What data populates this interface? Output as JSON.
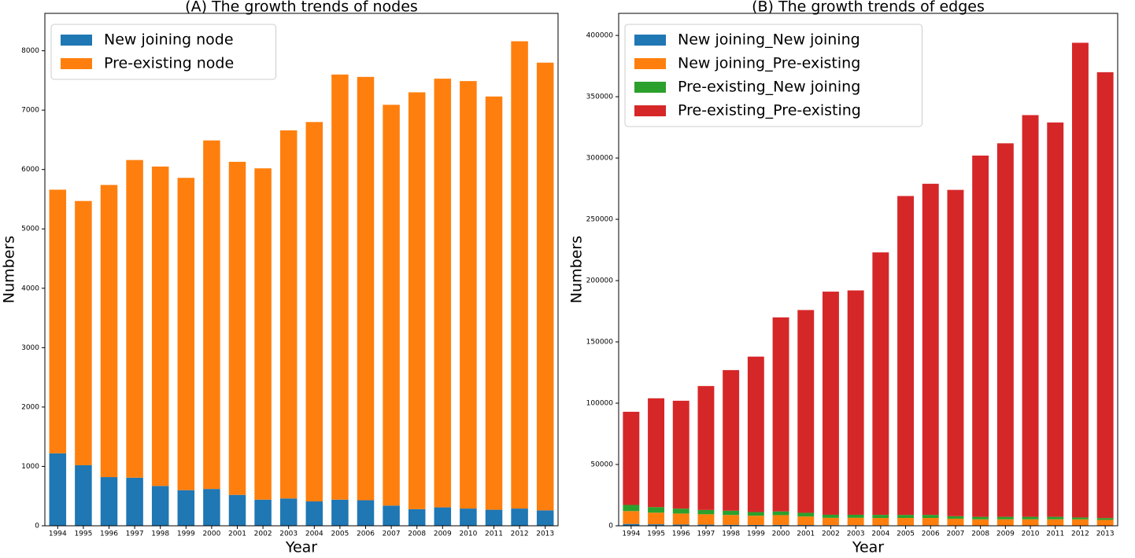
{
  "chart_data": [
    {
      "type": "stacked-bar",
      "title": "(A) The growth trends of nodes",
      "x_label": "Year",
      "y_label": "Numbers",
      "categories": [
        "1994",
        "1995",
        "1996",
        "1997",
        "1998",
        "1999",
        "2000",
        "2001",
        "2002",
        "2003",
        "2004",
        "2005",
        "2006",
        "2007",
        "2008",
        "2009",
        "2010",
        "2011",
        "2012",
        "2013"
      ],
      "series": [
        {
          "name": "New joining node",
          "color": "#1f77b4",
          "values": [
            1220,
            1020,
            820,
            810,
            670,
            600,
            620,
            520,
            440,
            460,
            410,
            440,
            430,
            340,
            280,
            310,
            290,
            270,
            290,
            260
          ]
        },
        {
          "name": "Pre-existing node",
          "color": "#ff7f0e",
          "values": [
            4440,
            4450,
            4920,
            5350,
            5380,
            5260,
            5870,
            5610,
            5580,
            6200,
            6390,
            7160,
            7130,
            6750,
            7020,
            7220,
            7200,
            6960,
            7870,
            7540
          ]
        }
      ],
      "ylim": [
        0,
        8630
      ],
      "yticks": [
        0,
        1000,
        2000,
        3000,
        4000,
        5000,
        6000,
        7000,
        8000
      ],
      "legend": "upper left"
    },
    {
      "type": "stacked-bar",
      "title": "(B) The growth trends of edges",
      "x_label": "Year",
      "y_label": "Numbers",
      "categories": [
        "1994",
        "1995",
        "1996",
        "1997",
        "1998",
        "1999",
        "2000",
        "2001",
        "2002",
        "2003",
        "2004",
        "2005",
        "2006",
        "2007",
        "2008",
        "2009",
        "2010",
        "2011",
        "2012",
        "2013"
      ],
      "series": [
        {
          "name": "New joining_New joining",
          "color": "#1f77b4",
          "values": [
            1500,
            1200,
            1000,
            900,
            800,
            700,
            700,
            600,
            500,
            500,
            400,
            400,
            400,
            300,
            300,
            300,
            300,
            300,
            300,
            300
          ]
        },
        {
          "name": "New joining_Pre-existing",
          "color": "#ff7f0e",
          "values": [
            10500,
            9500,
            9000,
            8500,
            8000,
            7500,
            8000,
            7000,
            6000,
            6000,
            6000,
            6000,
            6000,
            5500,
            5000,
            5000,
            5000,
            5000,
            5000,
            4500
          ]
        },
        {
          "name": "Pre-existing_New joining",
          "color": "#2ca02c",
          "values": [
            5000,
            4500,
            4000,
            3500,
            3500,
            3000,
            3000,
            3000,
            2500,
            2500,
            2500,
            2500,
            2500,
            2000,
            2000,
            2000,
            2000,
            2000,
            1500,
            1500
          ]
        },
        {
          "name": "Pre-existing_Pre-existing",
          "color": "#d62728",
          "values": [
            76000,
            88800,
            88000,
            101100,
            114700,
            126800,
            158300,
            165400,
            182000,
            183000,
            214100,
            260100,
            270100,
            266200,
            294700,
            304700,
            327700,
            321700,
            387200,
            363700
          ]
        }
      ],
      "ylim": [
        0,
        418000
      ],
      "yticks": [
        0,
        50000,
        100000,
        150000,
        200000,
        250000,
        300000,
        350000,
        400000
      ],
      "legend": "upper left"
    }
  ]
}
